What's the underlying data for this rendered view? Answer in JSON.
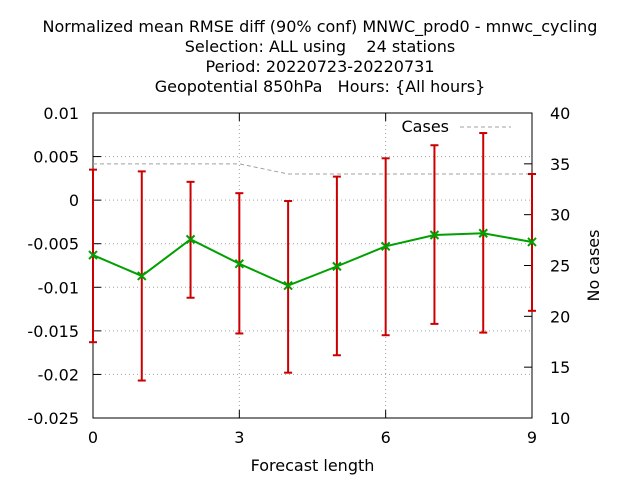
{
  "chart_data": {
    "type": "line",
    "title": [
      "Normalized mean RMSE diff (90% conf) MNWC_prod0 - mnwc_cycling",
      "Selection: ALL using    24 stations",
      "Period: 20220723-20220731",
      "Geopotential 850hPa   Hours: {All hours}"
    ],
    "xlabel": "Forecast length",
    "ylabel": "",
    "y2label": "No cases",
    "xlim": [
      0,
      9
    ],
    "ylim": [
      -0.025,
      0.01
    ],
    "y2lim": [
      10,
      40
    ],
    "xticks": [
      0,
      3,
      6,
      9
    ],
    "xtick_labels": [
      "0",
      "3",
      "6",
      "9"
    ],
    "yticks": [
      0.01,
      0.005,
      0,
      -0.005,
      -0.01,
      -0.015,
      -0.02,
      -0.025
    ],
    "ytick_labels": [
      "0.01",
      "0.005",
      "0",
      "-0.005",
      "-0.01",
      "-0.015",
      "-0.02",
      "-0.025"
    ],
    "y2ticks": [
      40,
      35,
      30,
      25,
      20,
      15,
      10
    ],
    "y2tick_labels": [
      "40",
      "35",
      "30",
      "25",
      "20",
      "15",
      "10"
    ],
    "grid": true,
    "legend_position": "top-right",
    "x": [
      0,
      1,
      2,
      3,
      4,
      5,
      6,
      7,
      8,
      9
    ],
    "series": [
      {
        "values": [
          -0.0063,
          -0.0087,
          -0.0045,
          -0.0073,
          -0.0098,
          -0.0076,
          -0.0053,
          -0.004,
          -0.0038,
          -0.0048
        ],
        "lower": [
          -0.0163,
          -0.0207,
          -0.0112,
          -0.0153,
          -0.0198,
          -0.0178,
          -0.0155,
          -0.0142,
          -0.0152,
          -0.0127
        ],
        "upper": [
          0.0035,
          0.0033,
          0.0021,
          0.0008,
          -0.0001,
          0.0027,
          0.0048,
          0.0063,
          0.0077,
          0.003
        ],
        "axis": "left",
        "color": "#00a000",
        "errorbar_color": "#cc0000"
      },
      {
        "name": "Cases",
        "values": [
          35,
          35,
          35,
          35,
          34,
          34,
          34,
          34,
          34,
          34
        ],
        "axis": "right",
        "color": "#a0a0a0",
        "style": "dashed"
      }
    ]
  }
}
